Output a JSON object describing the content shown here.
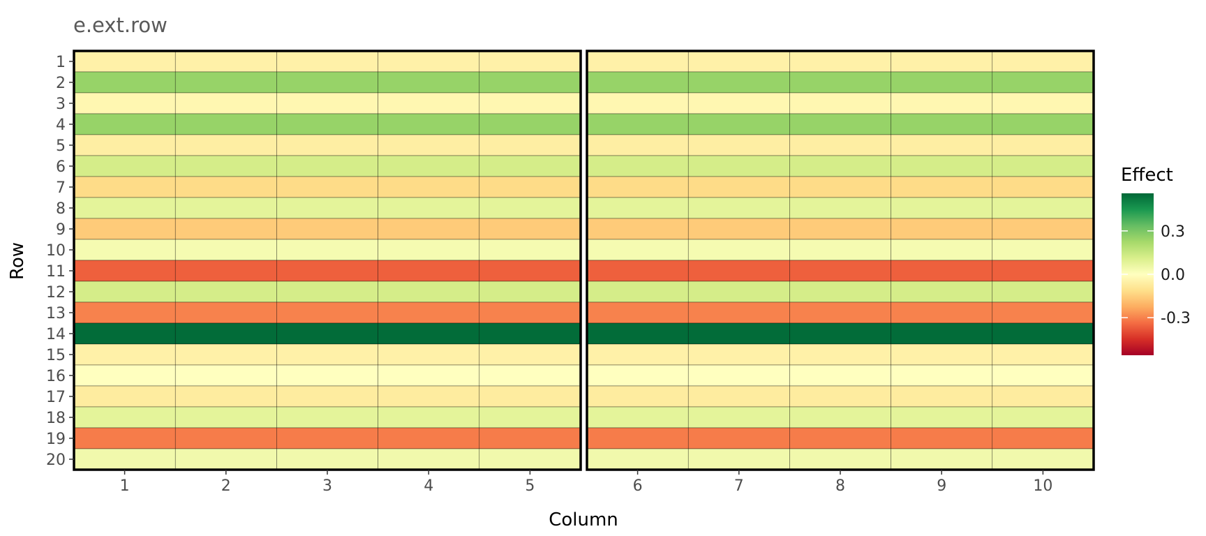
{
  "chart_data": {
    "type": "heatmap",
    "title": "e.ext.row",
    "xlabel": "Column",
    "ylabel": "Row",
    "columns": [
      1,
      2,
      3,
      4,
      5,
      6,
      7,
      8,
      9,
      10
    ],
    "rows": [
      1,
      2,
      3,
      4,
      5,
      6,
      7,
      8,
      9,
      10,
      11,
      12,
      13,
      14,
      15,
      16,
      17,
      18,
      19,
      20
    ],
    "row_effects": [
      -0.05,
      0.25,
      -0.03,
      0.25,
      -0.06,
      0.12,
      -0.12,
      0.08,
      -0.16,
      0.03,
      -0.36,
      0.12,
      -0.3,
      0.55,
      -0.05,
      0.0,
      -0.07,
      0.08,
      -0.31,
      0.04
    ],
    "panels": [
      [
        1,
        2,
        3,
        4,
        5
      ],
      [
        6,
        7,
        8,
        9,
        10
      ]
    ],
    "legend": {
      "title": "Effect",
      "ticks": [
        "0.3",
        "0.0",
        "-0.3"
      ],
      "tick_values": [
        0.3,
        0.0,
        -0.3
      ],
      "min": -0.56,
      "max": 0.56,
      "colors": [
        "#a50026",
        "#d73027",
        "#f46d43",
        "#fdae61",
        "#fee08b",
        "#ffffbf",
        "#d9ef8b",
        "#a6d96a",
        "#66bd63",
        "#1a9850",
        "#006837"
      ]
    },
    "grid": false
  }
}
